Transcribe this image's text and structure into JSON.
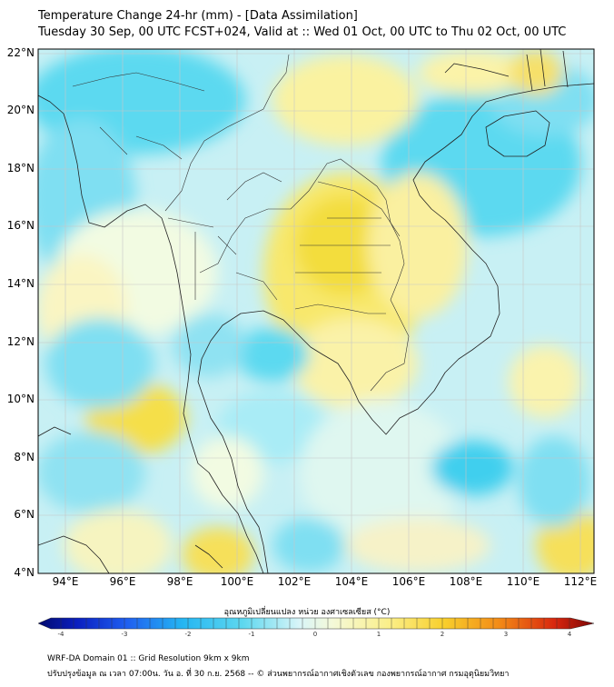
{
  "title": "Temperature Change 24-hr (mm) - [Data Assimilation]",
  "subtitle": "Tuesday 30 Sep, 00 UTC FCST+024, Valid at :: Wed 01 Oct, 00 UTC to Thu 02 Oct, 00 UTC",
  "lat_labels": [
    "22°N",
    "20°N",
    "18°N",
    "16°N",
    "14°N",
    "12°N",
    "10°N",
    "8°N",
    "6°N",
    "4°N"
  ],
  "lon_labels": [
    "94°E",
    "96°E",
    "98°E",
    "100°E",
    "102°E",
    "104°E",
    "106°E",
    "108°E",
    "110°E",
    "112°E"
  ],
  "colorbar": {
    "label": "อุณหภูมิเปลี่ยนแปลง หน่วย องศาเซลเซียส (°C)",
    "ticks": [
      "-4",
      "-3",
      "-2",
      "-1",
      "0",
      "1",
      "2",
      "3",
      "4"
    ],
    "min": -4,
    "max": 4
  },
  "footer": {
    "line1": "WRF-DA Domain 01 :: Grid Resolution 9km x 9km",
    "line2": "ปรับปรุงข้อมูล ณ เวลา 07:00น. วัน อ. ที่ 30 ก.ย. 2568 -- © ส่วนพยากรณ์อากาศเชิงตัวเลข กองพยากรณ์อากาศ กรมอุตุนิยมวิทยา"
  },
  "colors": {
    "cyan": "#4fd6ef",
    "light_cyan": "#a9ecf6",
    "near_zero": "#eafbf2",
    "yellow": "#f6e45a",
    "light_yellow": "#faf3ad",
    "border": "#222222"
  }
}
